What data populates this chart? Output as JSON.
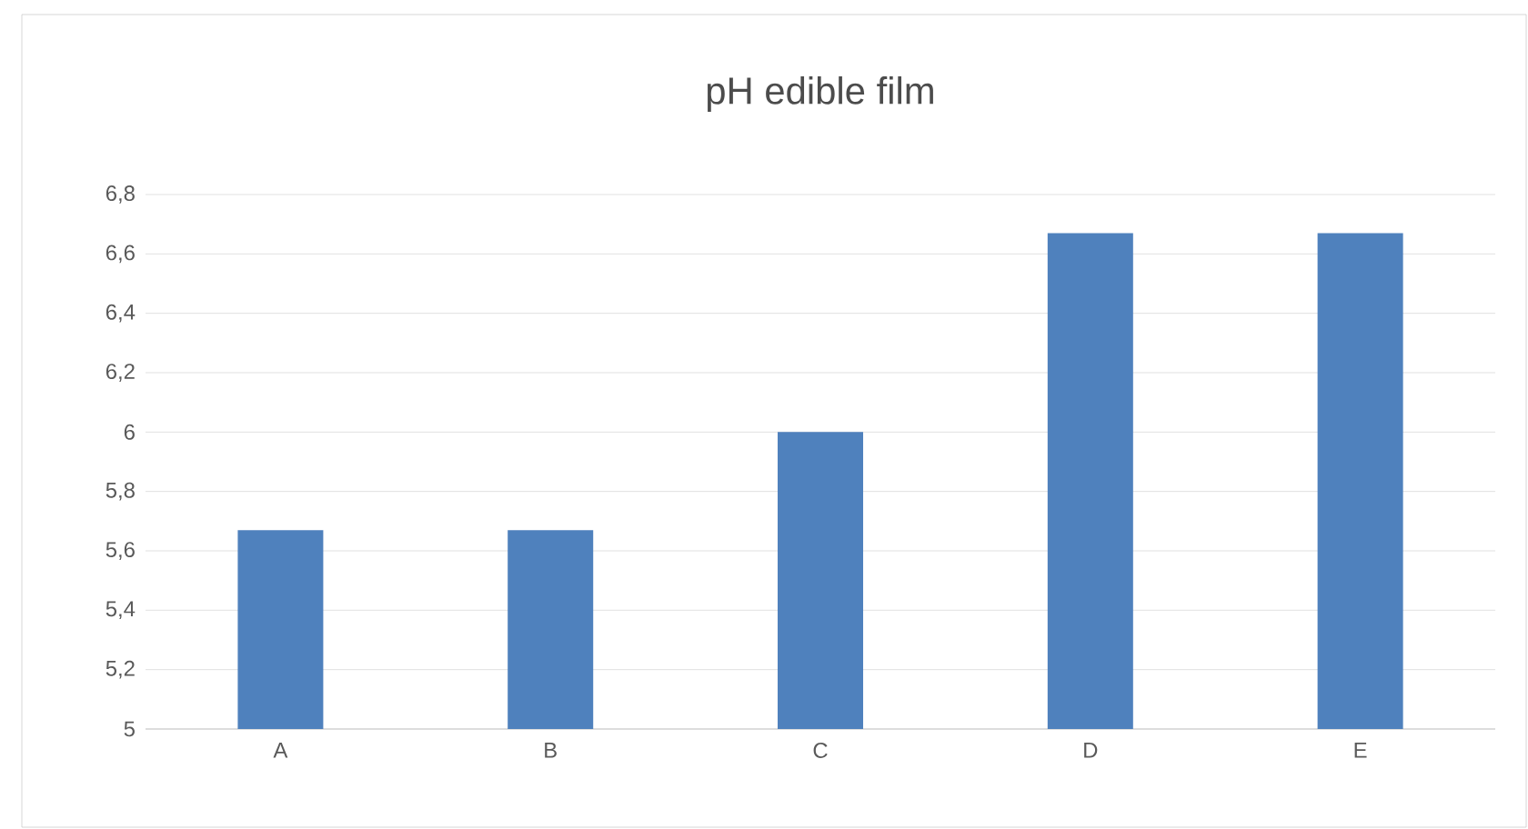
{
  "chart_data": {
    "type": "bar",
    "title": "pH edible film",
    "categories": [
      "A",
      "B",
      "C",
      "D",
      "E"
    ],
    "values": [
      5.67,
      5.67,
      6.0,
      6.67,
      6.67
    ],
    "color": "#4f81bd",
    "ylim": [
      5,
      6.8
    ],
    "yticks": [
      5,
      {
        "value": 5.2,
        "label": "5,2"
      },
      {
        "value": 5.4,
        "label": "5,4"
      },
      {
        "value": 5.6,
        "label": "5,6"
      },
      {
        "value": 5.8,
        "label": "5,8"
      },
      6,
      {
        "value": 6.2,
        "label": "6,2"
      },
      {
        "value": 6.4,
        "label": "6,4"
      },
      {
        "value": 6.6,
        "label": "6,6"
      },
      {
        "value": 6.8,
        "label": "6,8"
      }
    ],
    "grid": "y"
  }
}
